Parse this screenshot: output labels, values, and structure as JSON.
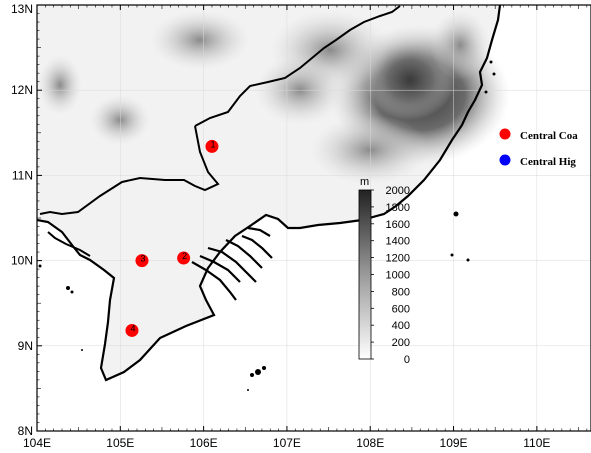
{
  "map": {
    "x_ticks": [
      {
        "value": 104,
        "label": "104E"
      },
      {
        "value": 105,
        "label": "105E"
      },
      {
        "value": 106,
        "label": "106E"
      },
      {
        "value": 107,
        "label": "107E"
      },
      {
        "value": 108,
        "label": "108E"
      },
      {
        "value": 109,
        "label": "109E"
      },
      {
        "value": 110,
        "label": "110E"
      }
    ],
    "y_ticks": [
      {
        "value": 8,
        "label": "8N"
      },
      {
        "value": 9,
        "label": "9N"
      },
      {
        "value": 10,
        "label": "10N"
      },
      {
        "value": 11,
        "label": "11N"
      },
      {
        "value": 12,
        "label": "12N"
      },
      {
        "value": 13,
        "label": "13N"
      }
    ],
    "lon_range": [
      104,
      110.65
    ],
    "lat_range": [
      8,
      13
    ],
    "grid": true
  },
  "stations": [
    {
      "lon": 106.1,
      "lat": 11.34,
      "label": "1",
      "color": "#ff0000"
    },
    {
      "lon": 105.26,
      "lat": 10.0,
      "label": "3",
      "color": "#ff0000"
    },
    {
      "lon": 105.76,
      "lat": 10.03,
      "label": "2",
      "color": "#ff0000"
    },
    {
      "lon": 105.14,
      "lat": 9.18,
      "label": "4",
      "color": "#ff0000"
    }
  ],
  "legend": {
    "items": [
      {
        "label": "Central Coa",
        "color": "#ff0000"
      },
      {
        "label": "Central Hig",
        "color": "#0000ff"
      }
    ]
  },
  "colorbar": {
    "unit": "m",
    "min": 0,
    "max": 2000,
    "ticks": [
      "2000",
      "1800",
      "1600",
      "1400",
      "1200",
      "1000",
      "800",
      "600",
      "400",
      "200",
      "0"
    ]
  }
}
